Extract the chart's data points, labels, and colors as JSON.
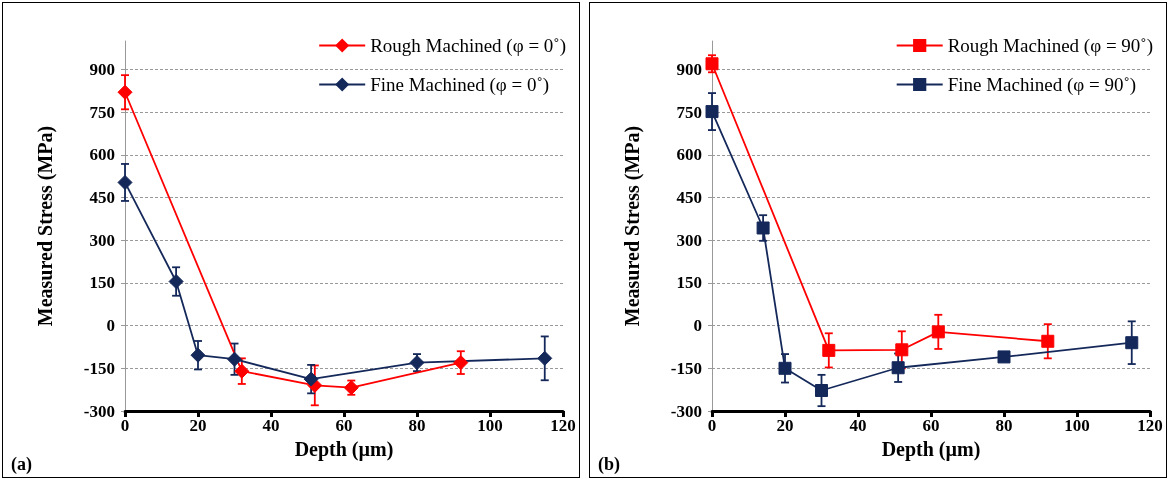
{
  "chart_data": [
    {
      "type": "line",
      "xlabel": "Depth (µm)",
      "ylabel": "Measured Stress (MPa)",
      "annotations": [
        "(a)"
      ],
      "xlim": [
        0,
        120
      ],
      "xticks": [
        0,
        20,
        40,
        60,
        80,
        100,
        120
      ],
      "ylim": [
        -300,
        1000
      ],
      "yticks": [
        -300,
        -150,
        0,
        150,
        300,
        450,
        600,
        750,
        900
      ],
      "grid": "y",
      "legend": "top right",
      "marker": "diamond",
      "series": [
        {
          "name": "Rough Machined (φ = 0˚)",
          "color": "#ff0000",
          "x": [
            0,
            32,
            52,
            62,
            92
          ],
          "values": [
            820,
            -160,
            -210,
            -218,
            -130
          ],
          "errors": [
            60,
            45,
            70,
            25,
            40
          ]
        },
        {
          "name": "Fine Machined (φ = 0˚)",
          "color": "#14285a",
          "x": [
            0,
            14,
            20,
            30,
            51,
            80,
            115
          ],
          "values": [
            503,
            155,
            -104,
            -118,
            -188,
            -130,
            -115
          ],
          "errors": [
            65,
            50,
            50,
            55,
            50,
            30,
            77
          ]
        }
      ]
    },
    {
      "type": "line",
      "xlabel": "Depth (µm)",
      "ylabel": "Measured Stress (MPa)",
      "annotations": [
        "(b)"
      ],
      "xlim": [
        0,
        120
      ],
      "xticks": [
        0,
        20,
        40,
        60,
        80,
        100,
        120
      ],
      "ylim": [
        -300,
        1000
      ],
      "yticks": [
        -300,
        -150,
        0,
        150,
        300,
        450,
        600,
        750,
        900
      ],
      "grid": "y",
      "legend": "top right",
      "marker": "square",
      "series": [
        {
          "name": "Rough Machined (φ = 90˚)",
          "color": "#ff0000",
          "x": [
            0,
            32,
            52,
            62,
            92
          ],
          "values": [
            920,
            -87,
            -85,
            -22,
            -55
          ],
          "errors": [
            30,
            60,
            65,
            60,
            60
          ]
        },
        {
          "name": "Fine Machined (φ = 90˚)",
          "color": "#14285a",
          "x": [
            0,
            14,
            20,
            30,
            51,
            80,
            115
          ],
          "values": [
            752,
            343,
            -150,
            -228,
            -148,
            -110,
            -60
          ],
          "errors": [
            65,
            45,
            50,
            55,
            50,
            15,
            75
          ]
        }
      ]
    }
  ]
}
